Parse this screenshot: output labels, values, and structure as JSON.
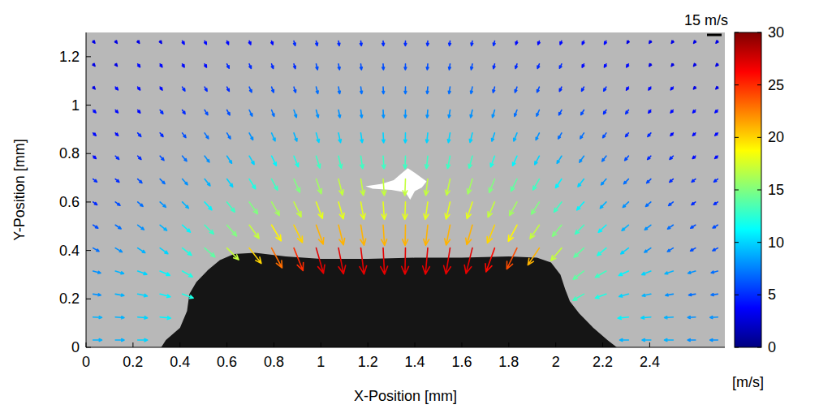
{
  "chart_data": {
    "type": "quiver",
    "xlabel": "X-Position [mm]",
    "ylabel": "Y-Position [mm]",
    "xlim": [
      0,
      2.72
    ],
    "ylim": [
      0,
      1.3
    ],
    "xticks": [
      0,
      0.2,
      0.4,
      0.6,
      0.8,
      1,
      1.2,
      1.4,
      1.6,
      1.8,
      2,
      2.2,
      2.4
    ],
    "yticks": [
      0,
      0.2,
      0.4,
      0.6,
      0.8,
      1,
      1.2
    ],
    "x": [
      0.03,
      0.125,
      0.22,
      0.315,
      0.41,
      0.505,
      0.6,
      0.695,
      0.79,
      0.885,
      0.98,
      1.075,
      1.17,
      1.265,
      1.36,
      1.455,
      1.55,
      1.645,
      1.74,
      1.835,
      1.93,
      2.025,
      2.12,
      2.215,
      2.31,
      2.405,
      2.5,
      2.595,
      2.69
    ],
    "y": [
      0.03,
      0.125,
      0.22,
      0.315,
      0.41,
      0.505,
      0.6,
      0.695,
      0.79,
      0.885,
      0.98,
      1.075,
      1.17,
      1.265
    ],
    "speed": [
      [
        9,
        9,
        10,
        null,
        null,
        null,
        null,
        null,
        null,
        null,
        null,
        null,
        null,
        null,
        null,
        null,
        null,
        null,
        null,
        null,
        null,
        null,
        null,
        null,
        9,
        9,
        9,
        8,
        8
      ],
      [
        9,
        9,
        10,
        11,
        null,
        null,
        null,
        null,
        null,
        null,
        null,
        null,
        null,
        null,
        null,
        null,
        null,
        null,
        null,
        null,
        null,
        null,
        null,
        null,
        11,
        10,
        9,
        8,
        8
      ],
      [
        8,
        9,
        10,
        11,
        12,
        null,
        null,
        null,
        null,
        null,
        null,
        null,
        null,
        null,
        null,
        null,
        null,
        null,
        null,
        null,
        null,
        null,
        13,
        12,
        10,
        9,
        8,
        7,
        7
      ],
      [
        8,
        9,
        10,
        11,
        12,
        null,
        null,
        null,
        null,
        null,
        null,
        null,
        null,
        null,
        null,
        null,
        null,
        null,
        null,
        null,
        null,
        null,
        14,
        13,
        11,
        10,
        9,
        8,
        7
      ],
      [
        7,
        8,
        9,
        10,
        12,
        14,
        17,
        20,
        23,
        25,
        27,
        27,
        27,
        27,
        27,
        27,
        27,
        27,
        26,
        24,
        21,
        17,
        14,
        12,
        10,
        8,
        7,
        6,
        6
      ],
      [
        6,
        7,
        8,
        9,
        11,
        13,
        15,
        17,
        19,
        20,
        21,
        21,
        21,
        21,
        21,
        21,
        21,
        21,
        20,
        19,
        17,
        15,
        13,
        11,
        9,
        8,
        7,
        6,
        6
      ],
      [
        5,
        6,
        7,
        8,
        9,
        11,
        13,
        15,
        16,
        17,
        18,
        18,
        18,
        18,
        18,
        18,
        18,
        18,
        17,
        16,
        15,
        13,
        11,
        9,
        8,
        7,
        6,
        5,
        5
      ],
      [
        5,
        5,
        6,
        7,
        8,
        9,
        10,
        12,
        13,
        15,
        16,
        17,
        17,
        17,
        17,
        17,
        17,
        16,
        15,
        14,
        13,
        11,
        10,
        8,
        7,
        6,
        5,
        5,
        5
      ],
      [
        4,
        5,
        5,
        6,
        7,
        8,
        9,
        10,
        11,
        12,
        13,
        13,
        13,
        13,
        13,
        13,
        13,
        13,
        12,
        11,
        10,
        9,
        8,
        7,
        6,
        5,
        5,
        4,
        4
      ],
      [
        4,
        4,
        5,
        5,
        6,
        7,
        7,
        8,
        9,
        9,
        10,
        10,
        10,
        10,
        10,
        10,
        10,
        10,
        9,
        9,
        8,
        7,
        7,
        6,
        5,
        5,
        4,
        4,
        4
      ],
      [
        4,
        4,
        4,
        5,
        5,
        6,
        6,
        7,
        7,
        8,
        8,
        8,
        8,
        8,
        8,
        8,
        8,
        8,
        8,
        7,
        7,
        6,
        6,
        5,
        5,
        4,
        4,
        4,
        4
      ],
      [
        3,
        4,
        4,
        4,
        5,
        5,
        5,
        6,
        6,
        6,
        7,
        7,
        7,
        7,
        7,
        7,
        7,
        7,
        6,
        6,
        6,
        5,
        5,
        5,
        4,
        4,
        4,
        3,
        3
      ],
      [
        3,
        3,
        4,
        4,
        4,
        4,
        5,
        5,
        5,
        5,
        6,
        6,
        6,
        6,
        6,
        6,
        6,
        6,
        5,
        5,
        5,
        5,
        4,
        4,
        4,
        3,
        3,
        3,
        3
      ],
      [
        3,
        3,
        3,
        3,
        4,
        4,
        4,
        4,
        4,
        5,
        5,
        5,
        5,
        5,
        5,
        5,
        5,
        5,
        5,
        4,
        4,
        4,
        4,
        4,
        3,
        3,
        3,
        3,
        3
      ]
    ],
    "angle": [
      [
        0,
        0,
        0,
        null,
        null,
        null,
        null,
        null,
        null,
        null,
        null,
        null,
        null,
        null,
        null,
        null,
        null,
        null,
        null,
        null,
        null,
        null,
        null,
        null,
        180,
        180,
        180,
        180,
        180
      ],
      [
        -3,
        -4,
        -5,
        -6,
        null,
        null,
        null,
        null,
        null,
        null,
        null,
        null,
        null,
        null,
        null,
        null,
        null,
        null,
        null,
        null,
        null,
        null,
        null,
        null,
        -174,
        -175,
        -176,
        -177,
        -177
      ],
      [
        -8,
        -10,
        -12,
        -15,
        -20,
        null,
        null,
        null,
        null,
        null,
        null,
        null,
        null,
        null,
        null,
        null,
        null,
        null,
        null,
        null,
        null,
        null,
        -150,
        -160,
        -165,
        -168,
        -170,
        -171,
        -172
      ],
      [
        -15,
        -17,
        -20,
        -24,
        -30,
        null,
        null,
        null,
        null,
        null,
        null,
        null,
        null,
        null,
        null,
        null,
        null,
        null,
        null,
        null,
        null,
        null,
        -142,
        -150,
        -155,
        -158,
        -161,
        -163,
        -165
      ],
      [
        -29,
        -31,
        -33,
        -36,
        -38,
        -41,
        -45,
        -52,
        -62,
        -68,
        -74,
        -79,
        -83,
        -87,
        -91,
        -95,
        -99,
        -104,
        -110,
        -116,
        -124,
        -130,
        -137,
        -140,
        -143,
        -146,
        -148,
        -150,
        -152
      ],
      [
        -32,
        -34,
        -37,
        -39,
        -42,
        -45,
        -49,
        -54,
        -59,
        -64,
        -70,
        -76,
        -81,
        -86,
        -91,
        -96,
        -101,
        -106,
        -112,
        -118,
        -124,
        -129,
        -134,
        -137,
        -140,
        -142,
        -145,
        -147,
        -149
      ],
      [
        -35,
        -37,
        -40,
        -42,
        -45,
        -48,
        -52,
        -55,
        -60,
        -64,
        -69,
        -74,
        -80,
        -86,
        -92,
        -98,
        -103,
        -108,
        -114,
        -119,
        -123,
        -127,
        -131,
        -134,
        -137,
        -139,
        -142,
        -144,
        -146
      ],
      [
        -38,
        -40,
        -43,
        -45,
        -48,
        -51,
        -54,
        -58,
        -62,
        -66,
        -71,
        -76,
        -81,
        -86,
        -92,
        -97,
        -102,
        -107,
        -112,
        -116,
        -120,
        -124,
        -128,
        -131,
        -134,
        -136,
        -139,
        -141,
        -143
      ],
      [
        -41,
        -43,
        -45,
        -48,
        -50,
        -53,
        -57,
        -60,
        -64,
        -68,
        -73,
        -77,
        -82,
        -86,
        -92,
        -96,
        -101,
        -105,
        -110,
        -114,
        -118,
        -122,
        -125,
        -128,
        -131,
        -134,
        -136,
        -138,
        -140
      ],
      [
        -43,
        -45,
        -48,
        -50,
        -53,
        -56,
        -59,
        -62,
        -66,
        -70,
        -74,
        -78,
        -82,
        -87,
        -91,
        -96,
        -100,
        -104,
        -109,
        -112,
        -116,
        -120,
        -123,
        -126,
        -129,
        -131,
        -134,
        -136,
        -138
      ],
      [
        -45,
        -47,
        -50,
        -52,
        -55,
        -58,
        -61,
        -64,
        -68,
        -71,
        -75,
        -79,
        -83,
        -87,
        -91,
        -95,
        -99,
        -103,
        -107,
        -111,
        -114,
        -118,
        -121,
        -124,
        -127,
        -129,
        -132,
        -134,
        -136
      ],
      [
        -47,
        -49,
        -52,
        -54,
        -57,
        -60,
        -63,
        -66,
        -69,
        -72,
        -76,
        -80,
        -83,
        -87,
        -91,
        -95,
        -99,
        -102,
        -106,
        -110,
        -113,
        -116,
        -119,
        -122,
        -125,
        -127,
        -130,
        -132,
        -134
      ],
      [
        -49,
        -51,
        -54,
        -56,
        -59,
        -61,
        -64,
        -67,
        -70,
        -73,
        -77,
        -80,
        -84,
        -87,
        -91,
        -95,
        -98,
        -102,
        -105,
        -108,
        -112,
        -115,
        -118,
        -120,
        -123,
        -125,
        -128,
        -130,
        -132
      ],
      [
        -51,
        -53,
        -55,
        -58,
        -60,
        -63,
        -66,
        -68,
        -71,
        -74,
        -78,
        -81,
        -84,
        -87,
        -91,
        -94,
        -98,
        -101,
        -104,
        -107,
        -110,
        -113,
        -116,
        -119,
        -121,
        -124,
        -126,
        -128,
        -130
      ]
    ],
    "colorbar": {
      "range": [
        0,
        30
      ],
      "ticks": [
        0,
        5,
        10,
        15,
        20,
        25,
        30
      ],
      "label": "[m/s]"
    },
    "reference": {
      "value": 15,
      "label": "15 m/s"
    },
    "droplet": {
      "x": [
        0.32,
        0.34,
        0.4,
        0.43,
        0.44,
        0.47,
        0.52,
        0.57,
        0.63,
        0.72,
        0.85,
        1.0,
        1.2,
        1.4,
        1.6,
        1.8,
        1.92,
        1.98,
        2.02,
        2.04,
        2.06,
        2.1,
        2.16,
        2.22,
        2.26
      ],
      "y": [
        0,
        0.03,
        0.08,
        0.15,
        0.22,
        0.27,
        0.32,
        0.36,
        0.385,
        0.39,
        0.375,
        0.365,
        0.365,
        0.37,
        0.37,
        0.375,
        0.37,
        0.35,
        0.3,
        0.24,
        0.19,
        0.14,
        0.08,
        0.03,
        0
      ]
    },
    "bright_spot": {
      "x": [
        1.19,
        1.26,
        1.31,
        1.34,
        1.37,
        1.4,
        1.45,
        1.43,
        1.4,
        1.38,
        1.36,
        1.3,
        1.22
      ],
      "y": [
        0.665,
        0.675,
        0.69,
        0.715,
        0.74,
        0.72,
        0.685,
        0.66,
        0.645,
        0.61,
        0.64,
        0.65,
        0.655
      ]
    }
  }
}
